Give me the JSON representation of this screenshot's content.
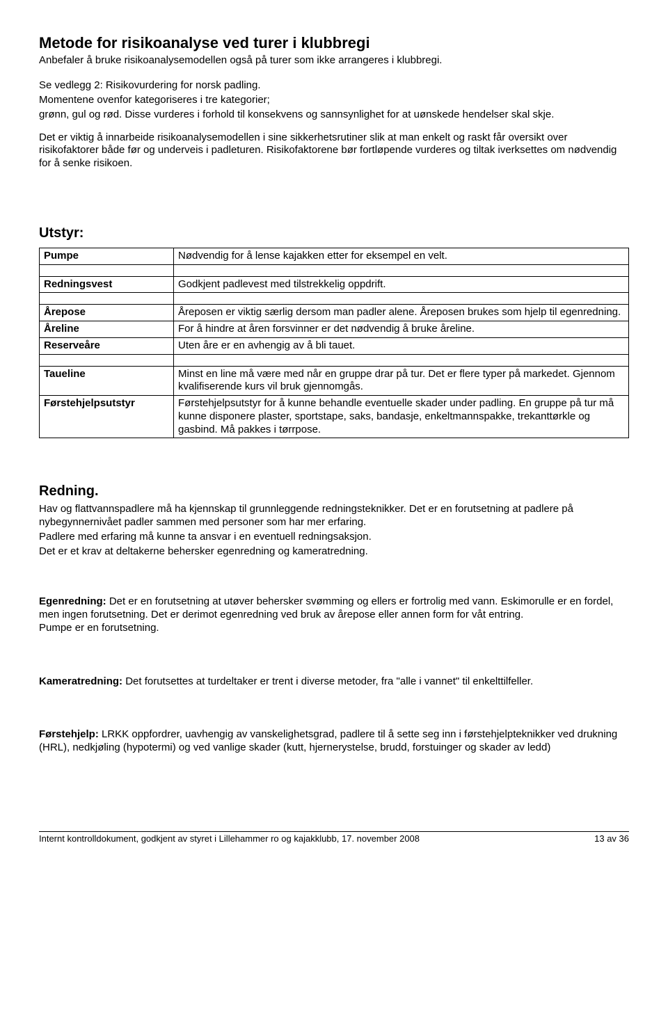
{
  "title": "Metode for risikoanalyse ved turer i klubbregi",
  "intro1": "Anbefaler å bruke risikoanalysemodellen også på turer som ikke arrangeres i klubbregi.",
  "intro2": "Se vedlegg 2: Risikovurdering for norsk padling.",
  "intro3": "Momentene ovenfor kategoriseres i tre kategorier;",
  "intro3b": "grønn, gul og rød. Disse vurderes i forhold til konsekvens og sannsynlighet for at uønskede hendelser skal skje.",
  "intro4": "Det er viktig å innarbeide risikoanalysemodellen i sine sikkerhetsrutiner slik at man enkelt og raskt får oversikt over risikofaktorer både før og underveis i padleturen. Risikofaktorene bør fortløpende vurderes og tiltak iverksettes om nødvendig for å senke risikoen.",
  "utstyr_header": "Utstyr:",
  "equip": [
    {
      "label": "Pumpe",
      "text": "Nødvendig for å lense kajakken etter for eksempel en velt."
    },
    {
      "label": "Redningsvest",
      "text": "Godkjent padlevest med tilstrekkelig oppdrift."
    },
    {
      "label": "Årepose",
      "text": "Åreposen er viktig særlig dersom man padler alene. Åreposen brukes som hjelp til egenredning."
    },
    {
      "label": "Åreline",
      "text": "For å hindre at åren forsvinner er det nødvendig å bruke åreline."
    },
    {
      "label": "Reserveåre",
      "text": "Uten åre er en avhengig av å bli tauet."
    },
    {
      "label": "Taueline",
      "text": "Minst en line må være med når en gruppe drar på tur. Det er flere typer på markedet. Gjennom kvalifiserende kurs vil bruk gjennomgås."
    },
    {
      "label": "Førstehjelpsutstyr",
      "text": "Førstehjelpsutstyr for å kunne behandle eventuelle skader under padling. En gruppe på tur må kunne disponere plaster, sportstape, saks, bandasje, enkeltmannspakke, trekanttørkle og gasbind. Må pakkes i tørrpose."
    }
  ],
  "redning_header": "Redning.",
  "redning_p1": "Hav og flattvannspadlere må ha kjennskap til grunnleggende redningsteknikker. Det er en forutsetning at padlere på nybegynnernivået padler sammen med personer som har mer erfaring.",
  "redning_p2": "Padlere med erfaring må kunne ta ansvar i en eventuell redningsaksjon.",
  "redning_p3": "Det er et krav at deltakerne behersker egenredning og kameratredning.",
  "egen_lead": "Egenredning:",
  "egen_text": " Det er en forutsetning at utøver behersker svømming og ellers er fortrolig med vann. Eskimorulle er en fordel, men ingen forutsetning. Det er derimot egenredning ved bruk av årepose eller annen form for våt entring.",
  "egen_last": "Pumpe er en forutsetning.",
  "kamerat_lead": "Kameratredning:",
  "kamerat_text": " Det forutsettes at turdeltaker er trent i diverse metoder, fra \"alle i vannet\" til enkelttilfeller.",
  "forste_lead": "Førstehjelp:",
  "forste_text": " LRKK oppfordrer, uavhengig av vanskelighetsgrad, padlere til å sette seg inn i førstehjelpteknikker ved drukning (HRL), nedkjøling (hypotermi) og ved vanlige skader (kutt, hjernerystelse, brudd, forstuinger og skader av ledd)",
  "footer_left": "Internt kontrolldokument, godkjent av styret i Lillehammer ro og kajakklubb, 17. november 2008",
  "footer_right": "13 av 36"
}
